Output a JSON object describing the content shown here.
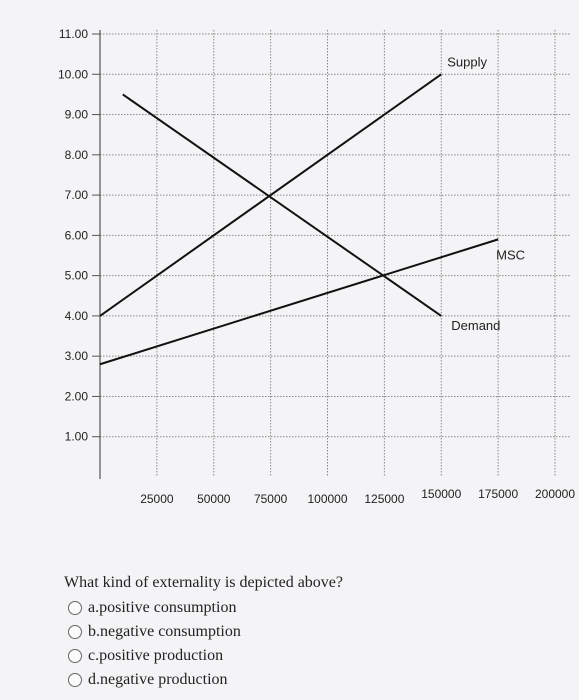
{
  "chart_data": {
    "type": "line",
    "x_ticks": [
      25000,
      50000,
      75000,
      100000,
      125000,
      150000,
      175000,
      200000
    ],
    "x_tick_labels": [
      "25000",
      "50000",
      "75000",
      "100000",
      "125000",
      "150000",
      "175000",
      "200000"
    ],
    "y_ticks": [
      1,
      2,
      3,
      4,
      5,
      6,
      7,
      8,
      9,
      10,
      11
    ],
    "y_tick_labels": [
      "1.00",
      "2.00",
      "3.00",
      "4.00",
      "5.00",
      "6.00",
      "7.00",
      "8.00",
      "9.00",
      "10.00",
      "11.00"
    ],
    "xlim": [
      0,
      200000
    ],
    "ylim": [
      0,
      11
    ],
    "grid": true,
    "series": [
      {
        "name": "Supply",
        "x": [
          0,
          150000
        ],
        "y": [
          4,
          10
        ]
      },
      {
        "name": "Demand",
        "x": [
          10000,
          150000
        ],
        "y": [
          9.5,
          4
        ]
      },
      {
        "name": "MSC",
        "x": [
          0,
          175000
        ],
        "y": [
          2.8,
          5.9
        ]
      }
    ]
  },
  "question": {
    "text": "What kind of externality is depicted above?",
    "options": [
      {
        "letter": "a.",
        "label": "positive consumption"
      },
      {
        "letter": "b.",
        "label": "negative consumption"
      },
      {
        "letter": "c.",
        "label": "positive production"
      },
      {
        "letter": "d.",
        "label": "negative production"
      }
    ]
  }
}
